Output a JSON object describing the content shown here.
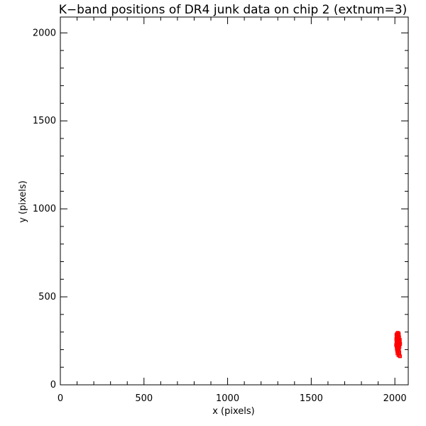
{
  "chart_data": {
    "type": "scatter",
    "title": "K−band positions of DR4 junk data on chip 2 (extnum=3)",
    "xlabel": "x (pixels)",
    "ylabel": "y (pixels)",
    "xlim": [
      0,
      2080
    ],
    "ylim": [
      0,
      2090
    ],
    "x_ticks": [
      0,
      500,
      1000,
      1500,
      2000
    ],
    "y_ticks": [
      0,
      500,
      1000,
      1500,
      2000
    ],
    "x_minor_step": 100,
    "y_minor_step": 100,
    "grid": false,
    "legend": "none",
    "marker": "square-open",
    "series": [
      {
        "color": "#ff0000",
        "points": [
          [
            2012,
            290
          ],
          [
            2018,
            287
          ],
          [
            2024,
            284
          ],
          [
            2015,
            280
          ],
          [
            2022,
            278
          ],
          [
            2010,
            274
          ],
          [
            2019,
            272
          ],
          [
            2026,
            270
          ],
          [
            2013,
            266
          ],
          [
            2021,
            264
          ],
          [
            2008,
            260
          ],
          [
            2017,
            258
          ],
          [
            2025,
            256
          ],
          [
            2011,
            252
          ],
          [
            2020,
            250
          ],
          [
            2029,
            248
          ],
          [
            2014,
            245
          ],
          [
            2023,
            243
          ],
          [
            2009,
            240
          ],
          [
            2018,
            238
          ],
          [
            2027,
            236
          ],
          [
            2012,
            232
          ],
          [
            2021,
            230
          ],
          [
            2016,
            226
          ],
          [
            2025,
            224
          ],
          [
            2010,
            220
          ],
          [
            2019,
            218
          ],
          [
            2028,
            216
          ],
          [
            2014,
            212
          ],
          [
            2023,
            210
          ],
          [
            2011,
            206
          ],
          [
            2020,
            204
          ],
          [
            2016,
            200
          ],
          [
            2025,
            198
          ],
          [
            2013,
            194
          ],
          [
            2022,
            191
          ],
          [
            2018,
            186
          ],
          [
            2027,
            183
          ],
          [
            2015,
            178
          ],
          [
            2024,
            174
          ],
          [
            2021,
            168
          ],
          [
            2028,
            165
          ],
          [
            2031,
            162
          ],
          [
            2030,
            240
          ],
          [
            2032,
            232
          ],
          [
            2017,
            296
          ],
          [
            2023,
            292
          ],
          [
            2009,
            284
          ],
          [
            2030,
            256
          ],
          [
            2007,
            226
          ]
        ]
      }
    ]
  }
}
